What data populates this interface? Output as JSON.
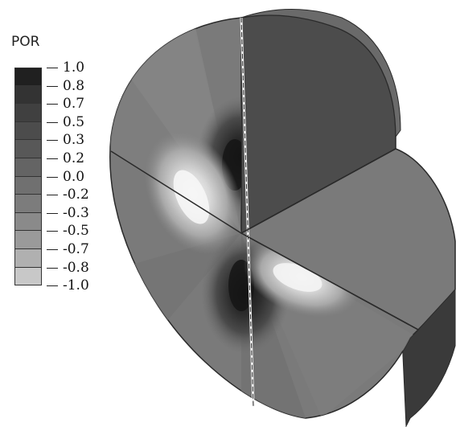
{
  "legend": {
    "title": "POR",
    "labels": [
      "1.0",
      "0.8",
      "0.7",
      "0.5",
      "0.3",
      "0.2",
      "0.0",
      "-0.2",
      "-0.3",
      "-0.5",
      "-0.7",
      "-0.8",
      "-1.0"
    ],
    "colors": [
      "#202020",
      "#333333",
      "#404040",
      "#4c4c4c",
      "#585858",
      "#646464",
      "#707070",
      "#7c7c7c",
      "#8a8a8a",
      "#9a9a9a",
      "#b0b0b0",
      "#c8c8c8"
    ]
  },
  "model": {
    "colors": {
      "face_uniform": "#7a7a7a",
      "face_dark": "#4a4a4a",
      "face_light": "#8a8a8a",
      "band_dark": "#6c6c6c",
      "band_light": "#888888",
      "edge": "#2a2a2a",
      "side": "#3a3a3a"
    }
  }
}
